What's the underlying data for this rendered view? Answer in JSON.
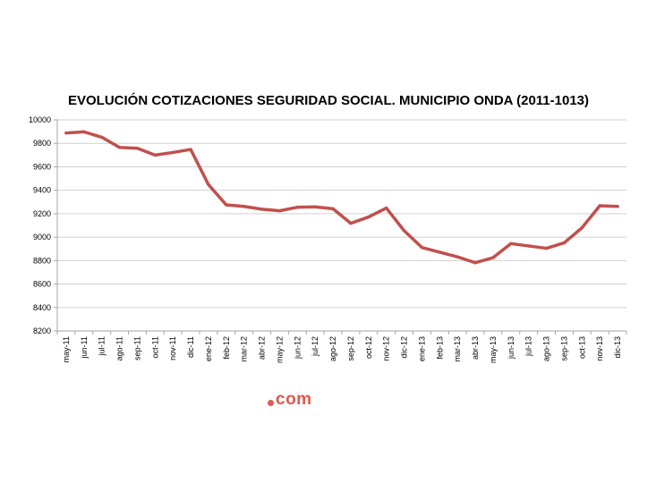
{
  "chart_data": {
    "type": "line",
    "title": "EVOLUCIÓN COTIZACIONES SEGURIDAD SOCIAL. MUNICIPIO ONDA (2011-1013)",
    "xlabel": "",
    "ylabel": "",
    "ylim": [
      8200,
      10000
    ],
    "yticks": [
      "8200",
      "8400",
      "8600",
      "8800",
      "9000",
      "9200",
      "9400",
      "9600",
      "9800",
      "10000"
    ],
    "grid": true,
    "legend": "none",
    "categories": [
      "may-11",
      "jun-11",
      "jul-11",
      "ago-11",
      "sep-11",
      "oct-11",
      "nov-11",
      "dic-11",
      "ene-12",
      "feb-12",
      "mar-12",
      "abr-12",
      "may-12",
      "jun-12",
      "jul-12",
      "ago-12",
      "sep-12",
      "oct-12",
      "nov-12",
      "dic-12",
      "ene-13",
      "feb-13",
      "mar-13",
      "abr-13",
      "may-13",
      "jun-13",
      "jul-13",
      "ago-13",
      "sep-13",
      "oct-13",
      "nov-13",
      "dic-13"
    ],
    "series": [
      {
        "color": "#c0504d",
        "values": [
          9888,
          9898,
          9852,
          9765,
          9758,
          9700,
          9722,
          9748,
          9448,
          9275,
          9262,
          9238,
          9225,
          9255,
          9258,
          9242,
          9118,
          9172,
          9248,
          9055,
          8912,
          8872,
          8832,
          8782,
          8825,
          8945,
          8925,
          8905,
          8952,
          9080,
          9268,
          9262
        ]
      }
    ]
  },
  "watermark": {
    "text": "com",
    "color": "#e0584f"
  }
}
